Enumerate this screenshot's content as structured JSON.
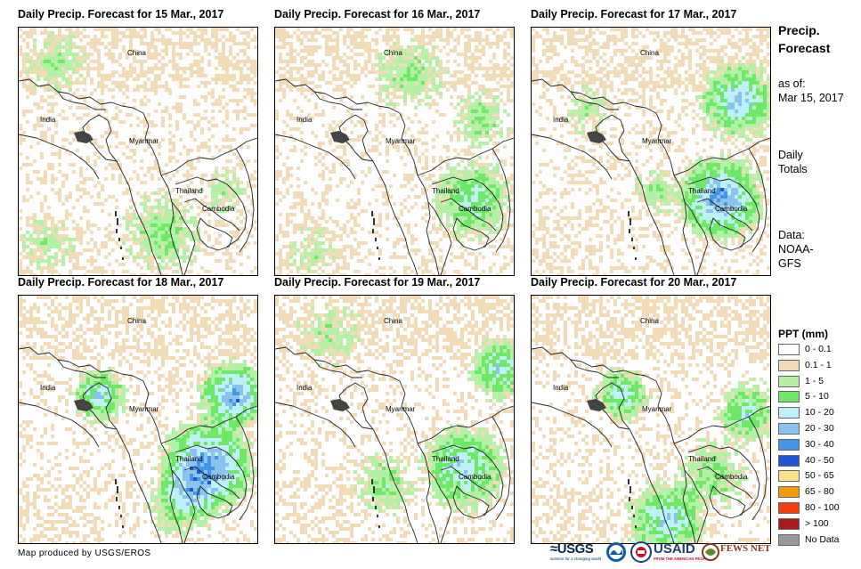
{
  "panels": [
    {
      "title": "Daily Precip. Forecast for 15 Mar., 2017",
      "day_index": 0
    },
    {
      "title": "Daily Precip. Forecast for 16 Mar., 2017",
      "day_index": 1
    },
    {
      "title": "Daily Precip. Forecast for 17 Mar., 2017",
      "day_index": 2
    },
    {
      "title": "Daily Precip. Forecast for 18 Mar., 2017",
      "day_index": 3
    },
    {
      "title": "Daily Precip. Forecast for 19 Mar., 2017",
      "day_index": 4
    },
    {
      "title": "Daily Precip. Forecast for 20 Mar., 2017",
      "day_index": 5
    }
  ],
  "map_labels": {
    "china": "China",
    "india": "India",
    "myanmar": "Myanmar",
    "thailand": "Thailand",
    "cambodia": "Cambodia"
  },
  "side": {
    "title_line1": "Precip.",
    "title_line2": "Forecast",
    "asof_line1": "as of:",
    "asof_line2": "Mar 15, 2017",
    "totals_line1": "Daily",
    "totals_line2": "Totals",
    "data_line1": "Data:",
    "data_line2": "NOAA-",
    "data_line3": "GFS"
  },
  "legend": {
    "title": "PPT (mm)",
    "items": [
      {
        "label": "0 - 0.1",
        "color": "#ffffff"
      },
      {
        "label": "0.1 - 1",
        "color": "#f2dcb8"
      },
      {
        "label": "1 - 5",
        "color": "#b3f2a6"
      },
      {
        "label": "5 - 10",
        "color": "#6ee866"
      },
      {
        "label": "10 - 20",
        "color": "#bdf0f7"
      },
      {
        "label": "20 - 30",
        "color": "#8cc3ee"
      },
      {
        "label": "30 - 40",
        "color": "#4596e8"
      },
      {
        "label": "40 - 50",
        "color": "#1f55d6"
      },
      {
        "label": "50 - 65",
        "color": "#fae28a"
      },
      {
        "label": "65 - 80",
        "color": "#f59a10"
      },
      {
        "label": "80 - 100",
        "color": "#f53d0a"
      },
      {
        "label": "> 100",
        "color": "#a81a1a"
      },
      {
        "label": "No Data",
        "color": "#9a9a9a"
      }
    ]
  },
  "credit": "Map produced by USGS/EROS",
  "logos": {
    "usgs": "≈USGS",
    "usgs_tagline": "science for a changing world",
    "usaid": "USAID",
    "usaid_tagline": "FROM THE AMERICAN PEOPLE",
    "fewsnet": "FEWS NET"
  }
}
